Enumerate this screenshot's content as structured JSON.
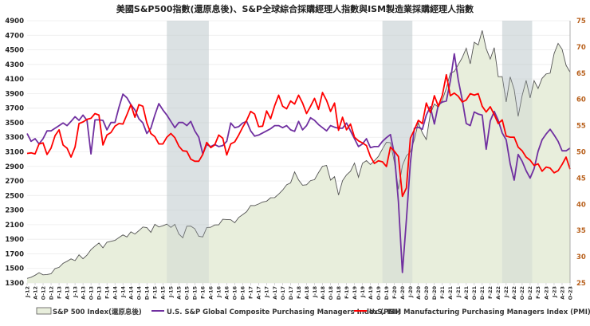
{
  "chart_data": {
    "type": "line",
    "title": "美國S&P500指數(還原息後)、S&P全球綜合採購經理人指數與ISM製造業採購經理人指數",
    "x_start": "2012-06",
    "frequency": "monthly",
    "x_tick_labels": [
      "J-12",
      "A-12",
      "O-12",
      "D-12",
      "F-13",
      "A-13",
      "J-13",
      "A-13",
      "O-13",
      "D-13",
      "F-14",
      "A-14",
      "J-14",
      "A-14",
      "O-14",
      "D-14",
      "F-15",
      "A-15",
      "J-15",
      "A-15",
      "O-15",
      "D-15",
      "F-16",
      "A-16",
      "J-16",
      "A-16",
      "O-16",
      "D-16",
      "F-17",
      "A-17",
      "J-17",
      "A-17",
      "O-17",
      "D-17",
      "F-18",
      "A-18",
      "J-18",
      "A-18",
      "O-18",
      "D-18",
      "F-19",
      "A-19",
      "J-19",
      "A-19",
      "O-19",
      "D-19",
      "F-20",
      "A-20",
      "J-20",
      "A-20",
      "O-20",
      "D-20",
      "F-21",
      "A-21",
      "J-21",
      "A-21",
      "O-21",
      "D-21",
      "F-22",
      "A-22",
      "J-22",
      "A-22",
      "O-22",
      "D-22",
      "F-23",
      "A-23",
      "J-23",
      "A-23",
      "O-23"
    ],
    "y_left": {
      "min": 1300,
      "max": 4900,
      "ticks": [
        1300,
        1500,
        1700,
        1900,
        2100,
        2300,
        2500,
        2700,
        2900,
        3100,
        3300,
        3500,
        3700,
        3900,
        4100,
        4300,
        4500,
        4700,
        4900
      ]
    },
    "y_right": {
      "min": 25,
      "max": 75,
      "ticks": [
        25,
        30,
        35,
        40,
        45,
        50,
        55,
        60,
        65,
        70,
        75
      ]
    },
    "grid": true,
    "legend_position": "bottom",
    "shaded_periods": [
      [
        "2015-05",
        "2016-03"
      ],
      [
        "2019-11",
        "2020-06"
      ],
      [
        "2022-05",
        "2022-12"
      ]
    ],
    "series": [
      {
        "name": "S&P 500 Index(還原息後)",
        "axis": "left",
        "style": "area",
        "color": "#555555",
        "fill": "#e8eedc",
        "values": [
          1362,
          1379,
          1406,
          1441,
          1412,
          1416,
          1426,
          1498,
          1515,
          1569,
          1598,
          1631,
          1606,
          1686,
          1633,
          1682,
          1757,
          1806,
          1848,
          1783,
          1859,
          1872,
          1884,
          1924,
          1960,
          1931,
          2003,
          1972,
          2018,
          2068,
          2059,
          1995,
          2105,
          2068,
          2086,
          2107,
          2063,
          2104,
          1972,
          1920,
          2079,
          2080,
          2044,
          1940,
          1932,
          2060,
          2065,
          2097,
          2099,
          2174,
          2171,
          2168,
          2126,
          2199,
          2239,
          2279,
          2364,
          2363,
          2384,
          2412,
          2423,
          2470,
          2472,
          2519,
          2575,
          2648,
          2674,
          2824,
          2714,
          2641,
          2648,
          2705,
          2718,
          2816,
          2902,
          2914,
          2712,
          2760,
          2507,
          2704,
          2784,
          2834,
          2946,
          2752,
          2942,
          2980,
          2926,
          2977,
          3038,
          3141,
          3231,
          3226,
          2954,
          2585,
          2912,
          3044,
          3100,
          3271,
          3500,
          3363,
          3270,
          3622,
          3756,
          3714,
          3811,
          3973,
          4181,
          4204,
          4298,
          4395,
          4523,
          4308,
          4605,
          4567,
          4766,
          4516,
          4374,
          4530,
          4132,
          4132,
          3785,
          4130,
          3955,
          3586,
          3872,
          4080,
          3840,
          4077,
          3970,
          4109,
          4169,
          4180,
          4450,
          4589,
          4508,
          4288,
          4194
        ]
      },
      {
        "name": "U.S. S&P Global Composite Purchasing Managers Index (PMI)",
        "axis": "right",
        "style": "line",
        "color": "#7030a0",
        "values": [
          53.5,
          52.0,
          52.5,
          51.5,
          52.5,
          54.0,
          54.0,
          54.5,
          55.0,
          55.5,
          55.0,
          55.8,
          56.7,
          56.0,
          57.0,
          56.0,
          49.6,
          56.1,
          56.1,
          56.0,
          54.2,
          55.6,
          55.6,
          58.5,
          61.0,
          60.3,
          59.0,
          58.0,
          56.3,
          55.5,
          53.5,
          54.5,
          57.0,
          59.2,
          58.0,
          57.0,
          55.8,
          54.6,
          55.6,
          55.6,
          55.0,
          55.8,
          54.0,
          52.8,
          49.6,
          51.4,
          51.0,
          51.4,
          51.0,
          51.2,
          52.0,
          55.5,
          54.6,
          54.8,
          55.5,
          55.8,
          54.0,
          53.0,
          53.2,
          53.6,
          54.0,
          54.4,
          55.0,
          55.0,
          54.6,
          55.0,
          54.2,
          53.9,
          55.8,
          54.2,
          55.0,
          56.5,
          56.0,
          55.2,
          54.6,
          54.0,
          55.0,
          54.7,
          54.5,
          54.5,
          55.5,
          54.0,
          52.5,
          51.0,
          51.5,
          52.5,
          50.8,
          51.0,
          51.0,
          52.0,
          52.7,
          53.3,
          49.5,
          40.5,
          27.0,
          37.0,
          47.9,
          54.5,
          54.7,
          54.3,
          57.0,
          58.6,
          55.3,
          59.0,
          59.5,
          59.7,
          63.5,
          68.7,
          63.7,
          59.9,
          55.4,
          55.0,
          57.6,
          57.2,
          57.0,
          50.5,
          55.9,
          57.7,
          56.0,
          53.6,
          52.3,
          47.7,
          44.6,
          49.5,
          48.2,
          46.4,
          45.0,
          46.8,
          50.1,
          52.3,
          53.4,
          54.3,
          53.2,
          52.0,
          50.2,
          50.2,
          50.7
        ]
      },
      {
        "name": "U.S. ISM Manufacturing Purchasing Managers Index (PMI)",
        "axis": "right",
        "style": "line",
        "color": "#ff0000",
        "values": [
          49.7,
          49.8,
          49.6,
          51.5,
          51.7,
          49.5,
          50.7,
          53.1,
          54.2,
          51.3,
          50.7,
          49.0,
          50.9,
          55.4,
          55.7,
          56.2,
          56.4,
          57.3,
          57.0,
          51.3,
          53.2,
          53.7,
          54.9,
          55.4,
          55.3,
          57.1,
          59.0,
          56.6,
          59.0,
          58.7,
          55.5,
          53.5,
          52.9,
          51.5,
          51.5,
          52.8,
          53.5,
          52.7,
          51.1,
          50.2,
          50.1,
          48.6,
          48.2,
          48.2,
          49.5,
          51.8,
          50.8,
          51.3,
          53.2,
          52.6,
          49.4,
          51.5,
          51.9,
          53.2,
          54.7,
          56.0,
          57.7,
          57.2,
          54.8,
          54.9,
          57.8,
          56.3,
          58.8,
          60.8,
          58.7,
          58.2,
          59.7,
          59.1,
          60.8,
          59.3,
          57.3,
          58.7,
          60.2,
          58.1,
          61.3,
          59.8,
          57.7,
          59.3,
          54.1,
          56.6,
          54.2,
          55.3,
          52.8,
          52.1,
          51.7,
          51.2,
          49.1,
          47.8,
          48.3,
          48.1,
          47.2,
          50.9,
          50.1,
          49.1,
          41.5,
          43.1,
          52.6,
          54.2,
          56.0,
          55.4,
          59.3,
          57.5,
          60.7,
          58.7,
          60.8,
          64.7,
          60.7,
          61.2,
          60.6,
          59.5,
          59.9,
          61.1,
          60.8,
          61.1,
          58.7,
          57.6,
          58.6,
          57.1,
          55.4,
          56.1,
          53.0,
          52.8,
          52.8,
          50.9,
          50.2,
          49.0,
          48.4,
          47.4,
          47.7,
          46.3,
          47.1,
          46.9,
          46.0,
          46.4,
          47.6,
          49.0,
          46.7
        ]
      }
    ]
  }
}
